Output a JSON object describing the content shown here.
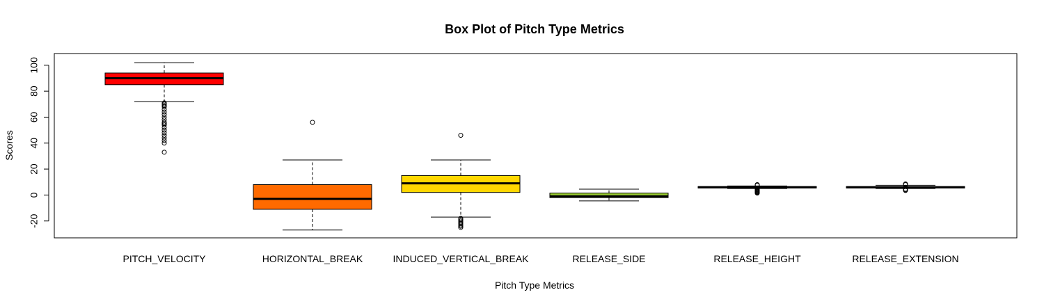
{
  "chart_data": {
    "type": "box",
    "title": "Box Plot of Pitch Type Metrics",
    "xlabel": "Pitch Type Metrics",
    "ylabel": "Scores",
    "ylim": [
      -33,
      109
    ],
    "yticks": [
      -20,
      0,
      20,
      40,
      60,
      80,
      100
    ],
    "grid": false,
    "legend": "none",
    "categories": [
      "PITCH_VELOCITY",
      "HORIZONTAL_BREAK",
      "INDUCED_VERTICAL_BREAK",
      "RELEASE_SIDE",
      "RELEASE_HEIGHT",
      "RELEASE_EXTENSION"
    ],
    "boxes": [
      {
        "name": "PITCH_VELOCITY",
        "whisker_low": 72,
        "q1": 85,
        "median": 90,
        "q3": 94,
        "whisker_high": 102,
        "outliers": [
          33,
          40,
          42,
          44,
          46,
          48,
          50,
          52,
          54,
          55,
          56,
          58,
          60,
          62,
          64,
          66,
          68,
          69,
          70,
          71
        ],
        "color": "#FF0000"
      },
      {
        "name": "HORIZONTAL_BREAK",
        "whisker_low": -27,
        "q1": -11,
        "median": -3,
        "q3": 8,
        "whisker_high": 27,
        "outliers": [
          56
        ],
        "color": "#FF6A00"
      },
      {
        "name": "INDUCED_VERTICAL_BREAK",
        "whisker_low": -17,
        "q1": 2,
        "median": 9,
        "q3": 15,
        "whisker_high": 27,
        "outliers": [
          46,
          -18,
          -19,
          -20,
          -21,
          -22,
          -23,
          -24,
          -25
        ],
        "color": "#FFD700"
      },
      {
        "name": "RELEASE_SIDE",
        "whisker_low": -4.5,
        "q1": -2,
        "median": -1,
        "q3": 1.5,
        "whisker_high": 4.5,
        "outliers": [],
        "color": "#9ACD32"
      },
      {
        "name": "RELEASE_HEIGHT",
        "whisker_low": 5,
        "q1": 5.5,
        "median": 6,
        "q3": 6.5,
        "whisker_high": 7,
        "outliers": [
          1.5,
          2,
          2.5,
          3,
          3.5,
          4,
          4.5,
          7.5,
          8
        ],
        "color": "#32CD32"
      },
      {
        "name": "RELEASE_EXTENSION",
        "whisker_low": 5,
        "q1": 5.5,
        "median": 6,
        "q3": 6.5,
        "whisker_high": 7.5,
        "outliers": [
          3.5,
          4,
          4.5,
          8,
          8.5
        ],
        "color": "#00CED1"
      }
    ]
  }
}
